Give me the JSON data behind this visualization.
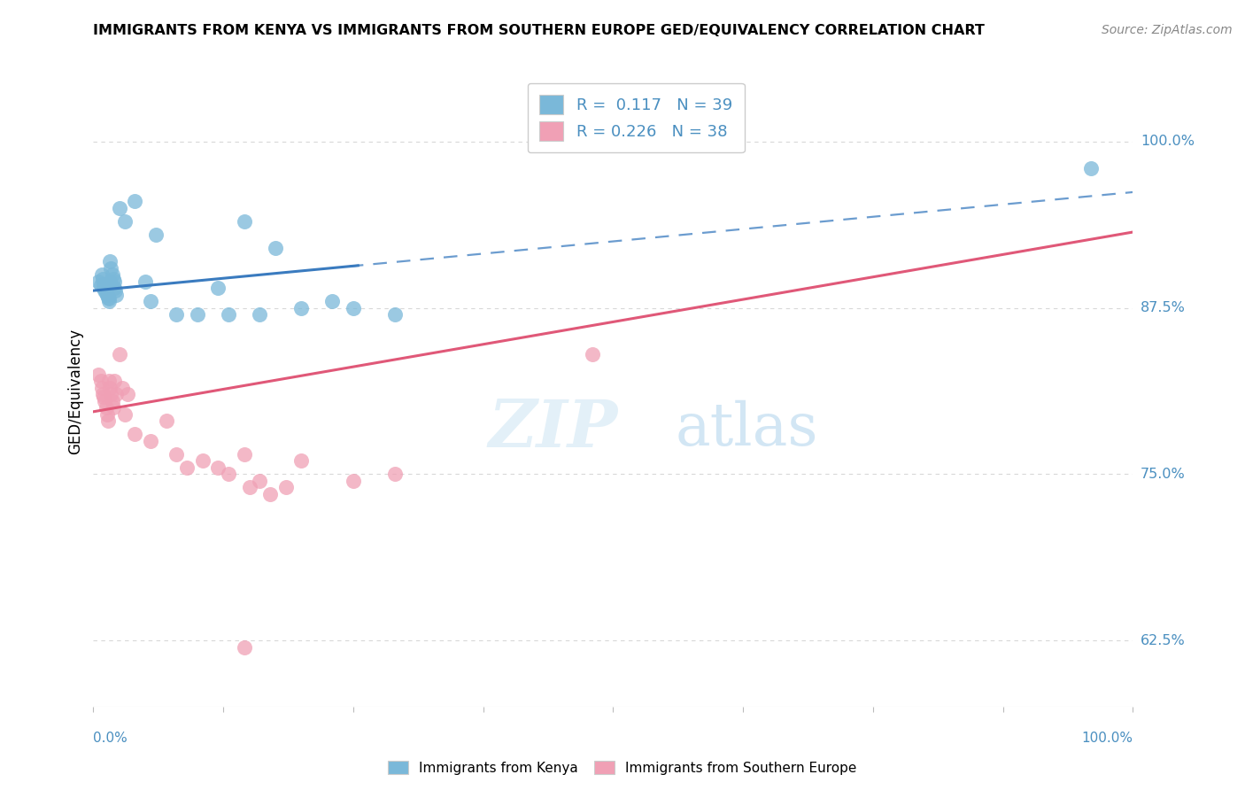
{
  "title": "IMMIGRANTS FROM KENYA VS IMMIGRANTS FROM SOUTHERN EUROPE GED/EQUIVALENCY CORRELATION CHART",
  "source": "Source: ZipAtlas.com",
  "ylabel": "GED/Equivalency",
  "legend_label1": "Immigrants from Kenya",
  "legend_label2": "Immigrants from Southern Europe",
  "R1": "0.117",
  "N1": "39",
  "R2": "0.226",
  "N2": "38",
  "color_kenya": "#7ab8d9",
  "color_southern": "#f0a0b5",
  "color_kenya_line": "#3a7bbf",
  "color_southern_line": "#e05878",
  "color_blue_text": "#4a8fc0",
  "color_grid": "#d8d8d8",
  "background_color": "#ffffff",
  "ytick_values": [
    0.625,
    0.75,
    0.875,
    1.0
  ],
  "ytick_labels": [
    "62.5%",
    "75.0%",
    "87.5%",
    "100.0%"
  ],
  "xlim": [
    0.0,
    1.0
  ],
  "ylim": [
    0.575,
    1.05
  ],
  "kenya_x": [
    0.005,
    0.007,
    0.008,
    0.009,
    0.01,
    0.01,
    0.011,
    0.012,
    0.013,
    0.014,
    0.015,
    0.015,
    0.016,
    0.016,
    0.017,
    0.018,
    0.019,
    0.02,
    0.02,
    0.021,
    0.022,
    0.025,
    0.03,
    0.04,
    0.05,
    0.055,
    0.06,
    0.08,
    0.1,
    0.12,
    0.13,
    0.145,
    0.16,
    0.175,
    0.2,
    0.23,
    0.25,
    0.29,
    0.96
  ],
  "kenya_y": [
    0.895,
    0.892,
    0.9,
    0.897,
    0.893,
    0.89,
    0.888,
    0.886,
    0.885,
    0.883,
    0.882,
    0.88,
    0.895,
    0.91,
    0.905,
    0.9,
    0.897,
    0.895,
    0.89,
    0.888,
    0.885,
    0.95,
    0.94,
    0.955,
    0.895,
    0.88,
    0.93,
    0.87,
    0.87,
    0.89,
    0.87,
    0.94,
    0.87,
    0.92,
    0.875,
    0.88,
    0.875,
    0.87,
    0.98
  ],
  "southern_x": [
    0.005,
    0.007,
    0.008,
    0.009,
    0.01,
    0.011,
    0.012,
    0.013,
    0.014,
    0.015,
    0.016,
    0.017,
    0.018,
    0.019,
    0.02,
    0.022,
    0.025,
    0.028,
    0.03,
    0.033,
    0.04,
    0.055,
    0.07,
    0.08,
    0.09,
    0.105,
    0.12,
    0.13,
    0.145,
    0.15,
    0.16,
    0.17,
    0.185,
    0.2,
    0.25,
    0.29,
    0.48,
    0.145
  ],
  "southern_y": [
    0.825,
    0.82,
    0.815,
    0.81,
    0.808,
    0.805,
    0.8,
    0.795,
    0.79,
    0.82,
    0.815,
    0.81,
    0.805,
    0.8,
    0.82,
    0.81,
    0.84,
    0.815,
    0.795,
    0.81,
    0.78,
    0.775,
    0.79,
    0.765,
    0.755,
    0.76,
    0.755,
    0.75,
    0.765,
    0.74,
    0.745,
    0.735,
    0.74,
    0.76,
    0.745,
    0.75,
    0.84,
    0.62
  ]
}
